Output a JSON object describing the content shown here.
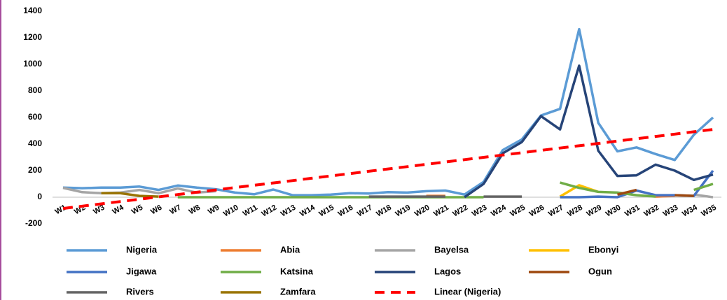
{
  "chart_data": {
    "type": "line",
    "categories": [
      "W1",
      "W2",
      "W3",
      "W4",
      "W5",
      "W6",
      "W7",
      "W8",
      "W9",
      "W10",
      "W11",
      "W12",
      "W13",
      "W14",
      "W15",
      "W16",
      "W17",
      "W18",
      "W19",
      "W20",
      "W21",
      "W22",
      "W23",
      "W24",
      "W25",
      "W26",
      "W27",
      "W28",
      "W29",
      "W30",
      "W31",
      "W32",
      "W33",
      "W34",
      "W35"
    ],
    "ylim": [
      -200,
      1400
    ],
    "yticks": [
      -200,
      0,
      200,
      400,
      600,
      800,
      1000,
      1200,
      1400
    ],
    "grid": false,
    "legend": "bottom",
    "series": [
      {
        "name": "Nigeria",
        "color": "#5b9bd5",
        "values": [
          72,
          68,
          72,
          72,
          80,
          55,
          88,
          72,
          60,
          35,
          22,
          58,
          15,
          15,
          20,
          30,
          28,
          38,
          35,
          45,
          50,
          20,
          115,
          355,
          435,
          615,
          665,
          1265,
          560,
          345,
          375,
          325,
          280,
          470,
          600
        ]
      },
      {
        "name": "Abia",
        "color": "#ed7d31",
        "values": [
          null,
          null,
          null,
          null,
          null,
          null,
          null,
          null,
          null,
          null,
          null,
          null,
          null,
          null,
          null,
          null,
          null,
          null,
          null,
          10,
          10,
          null,
          null,
          null,
          null,
          null,
          null,
          null,
          null,
          null,
          null,
          5,
          10,
          null,
          null
        ]
      },
      {
        "name": "Bayelsa",
        "color": "#a5a5a5",
        "values": [
          70,
          38,
          30,
          35,
          55,
          30,
          65,
          35,
          45,
          null,
          null,
          null,
          null,
          null,
          null,
          null,
          null,
          null,
          null,
          null,
          null,
          null,
          null,
          null,
          null,
          null,
          null,
          null,
          null,
          null,
          null,
          null,
          null,
          20,
          0
        ]
      },
      {
        "name": "Ebonyi",
        "color": "#ffc000",
        "values": [
          null,
          null,
          null,
          null,
          null,
          null,
          null,
          null,
          null,
          null,
          null,
          null,
          null,
          null,
          null,
          null,
          null,
          null,
          null,
          null,
          null,
          null,
          null,
          null,
          null,
          null,
          5,
          90,
          40,
          null,
          null,
          null,
          null,
          null,
          null
        ]
      },
      {
        "name": "Jigawa",
        "color": "#4472c4",
        "values": [
          null,
          null,
          null,
          null,
          null,
          null,
          null,
          null,
          null,
          null,
          null,
          null,
          null,
          null,
          null,
          null,
          null,
          null,
          null,
          null,
          null,
          null,
          null,
          null,
          null,
          null,
          0,
          0,
          5,
          0,
          50,
          15,
          15,
          10,
          200
        ]
      },
      {
        "name": "Katsina",
        "color": "#70ad47",
        "values": [
          null,
          null,
          null,
          null,
          null,
          null,
          0,
          0,
          0,
          0,
          0,
          0,
          0,
          0,
          0,
          0,
          0,
          0,
          0,
          0,
          0,
          0,
          0,
          null,
          null,
          null,
          110,
          70,
          40,
          35,
          15,
          5,
          null,
          55,
          100
        ]
      },
      {
        "name": "Lagos",
        "color": "#264478",
        "values": [
          null,
          null,
          null,
          null,
          null,
          null,
          null,
          null,
          null,
          null,
          null,
          null,
          null,
          null,
          null,
          null,
          null,
          null,
          null,
          null,
          null,
          0,
          100,
          330,
          415,
          610,
          510,
          990,
          350,
          160,
          165,
          245,
          200,
          130,
          170
        ]
      },
      {
        "name": "Ogun",
        "color": "#9e480e",
        "values": [
          null,
          null,
          null,
          null,
          null,
          null,
          null,
          null,
          null,
          null,
          null,
          null,
          null,
          null,
          null,
          null,
          null,
          null,
          null,
          null,
          null,
          null,
          null,
          null,
          null,
          null,
          null,
          null,
          null,
          20,
          55,
          null,
          15,
          10,
          null
        ]
      },
      {
        "name": "Rivers",
        "color": "#636363",
        "values": [
          null,
          null,
          null,
          null,
          null,
          null,
          null,
          null,
          null,
          null,
          null,
          null,
          null,
          null,
          null,
          null,
          5,
          5,
          5,
          5,
          5,
          null,
          5,
          5,
          5,
          null,
          null,
          null,
          null,
          null,
          null,
          null,
          null,
          null,
          null
        ]
      },
      {
        "name": "Zamfara",
        "color": "#997300",
        "values": [
          null,
          null,
          30,
          30,
          10,
          5,
          null,
          null,
          null,
          null,
          null,
          null,
          null,
          null,
          null,
          null,
          null,
          null,
          null,
          null,
          null,
          null,
          null,
          null,
          null,
          null,
          null,
          null,
          null,
          null,
          null,
          null,
          null,
          null,
          null
        ]
      },
      {
        "name": "Linear (Nigeria)",
        "color": "#ff0000",
        "dashed": true,
        "values": [
          -85,
          -67.5,
          -50,
          -32.5,
          -15,
          2.5,
          20,
          37.5,
          55,
          72.5,
          90,
          107.5,
          125,
          142.5,
          160,
          177.5,
          195,
          212.5,
          230,
          247.5,
          265,
          282.5,
          300,
          317.5,
          335,
          352.5,
          370,
          387.5,
          405,
          422.5,
          440,
          457.5,
          475,
          492.5,
          510
        ]
      }
    ]
  }
}
